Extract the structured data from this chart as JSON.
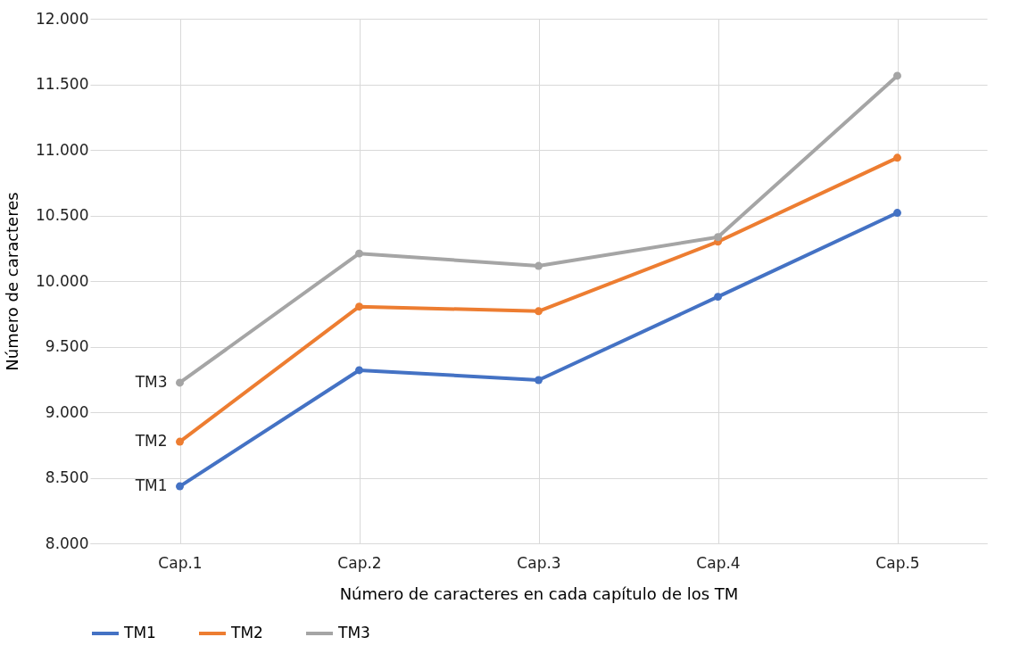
{
  "chart_data": {
    "type": "line",
    "xlabel": "Número de caracteres en cada capítulo de los TM",
    "ylabel": "Número de caracteres",
    "categories": [
      "Cap.1",
      "Cap.2",
      "Cap.3",
      "Cap.4",
      "Cap.5"
    ],
    "series": [
      {
        "name": "TM1",
        "color": "#4472c4",
        "values": [
          8435,
          9320,
          9245,
          9880,
          10520
        ]
      },
      {
        "name": "TM2",
        "color": "#ed7d31",
        "values": [
          8775,
          9805,
          9770,
          10300,
          10940
        ]
      },
      {
        "name": "TM3",
        "color": "#a5a5a5",
        "values": [
          9225,
          10210,
          10115,
          10335,
          11565
        ]
      }
    ],
    "ylim": [
      8000,
      12000
    ],
    "yticks": [
      {
        "value": 8000,
        "label": "8.000"
      },
      {
        "value": 8500,
        "label": "8.500"
      },
      {
        "value": 9000,
        "label": "9.000"
      },
      {
        "value": 9500,
        "label": "9.500"
      },
      {
        "value": 10000,
        "label": "10.000"
      },
      {
        "value": 10500,
        "label": "10.500"
      },
      {
        "value": 11000,
        "label": "11.000"
      },
      {
        "value": 11500,
        "label": "11.500"
      },
      {
        "value": 12000,
        "label": "12.000"
      }
    ],
    "grid": true,
    "legend": "bottom",
    "marker": "circle",
    "line_style": "solid"
  }
}
